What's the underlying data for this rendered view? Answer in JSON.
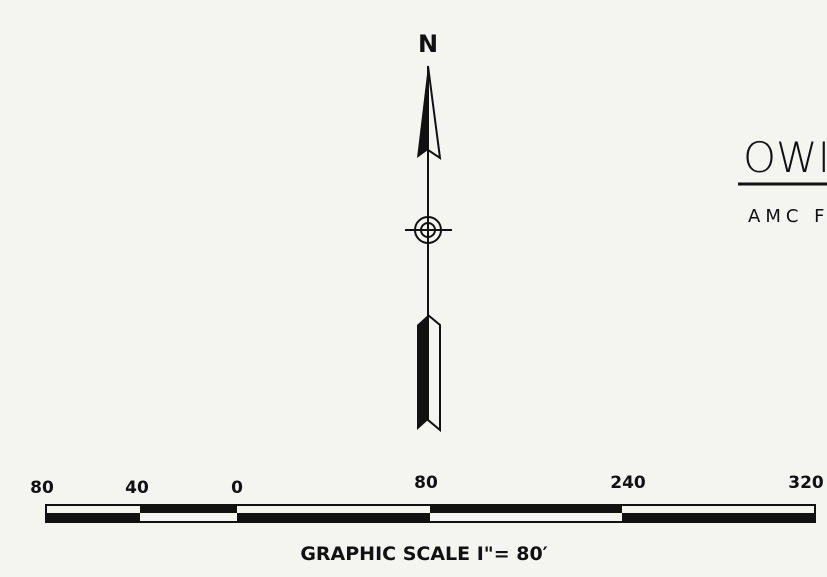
{
  "north_arrow": {
    "label": "N"
  },
  "title_block": {
    "title": "OWI",
    "subtitle": "AMC F"
  },
  "scale": {
    "labels": [
      "80",
      "40",
      "0",
      "80",
      "240",
      "320"
    ],
    "caption": "GRAPHIC SCALE I\"= 80′"
  }
}
